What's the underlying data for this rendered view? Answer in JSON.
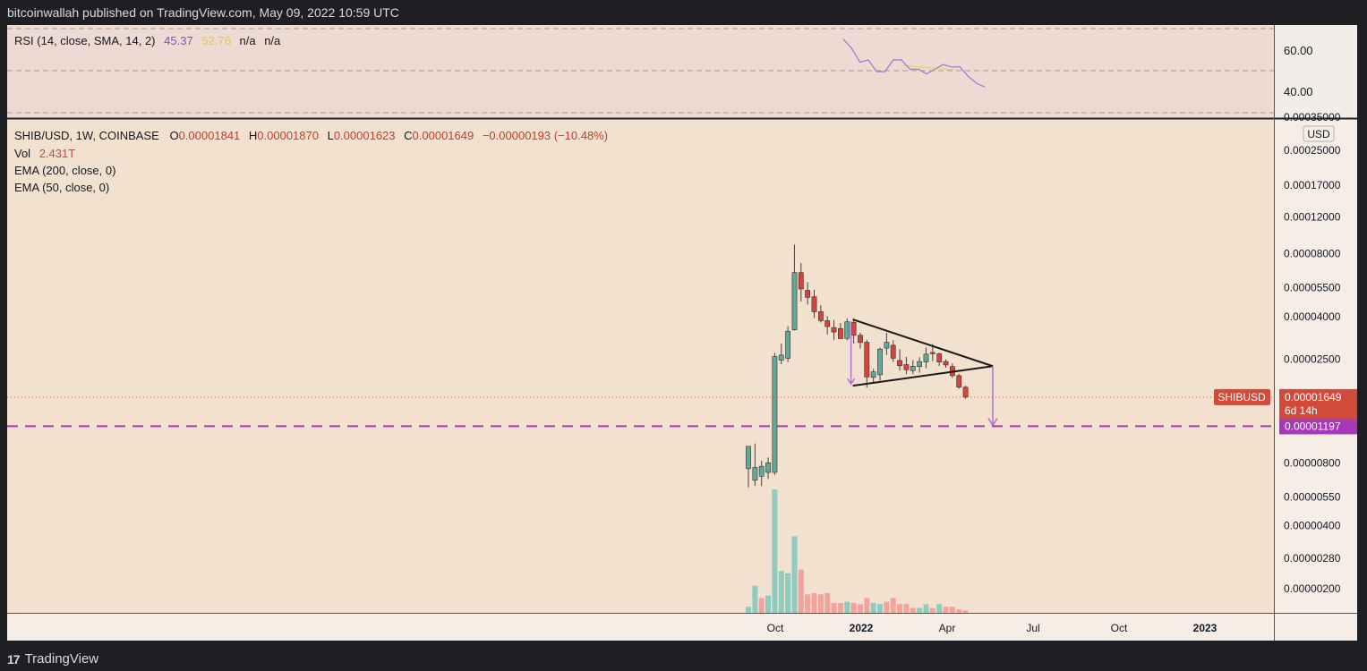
{
  "header": {
    "publisher_line": "bitcoinwallah published on TradingView.com, May 09, 2022 10:59 UTC"
  },
  "footer": {
    "brand": "TradingView",
    "logo_glyph": "17"
  },
  "colors": {
    "main_bg": "#f3e1cf",
    "rsi_bg": "#eddad3",
    "up": "#5fa89a",
    "down": "#d4453d",
    "vol_up": "#8fcbbf",
    "vol_down": "#f1a39c",
    "rsi_line": "#9a78d6",
    "rsi_sma": "#e8d25a",
    "target": "#a539b8",
    "last_price": "#d24a3a",
    "pattern": "#1a1a1a",
    "arrow": "#b073c9"
  },
  "rsi_panel": {
    "legend_name": "RSI (14, close, SMA, 14, 2)",
    "rsi_value": "45.37",
    "sma_value": "52.76",
    "na1": "n/a",
    "na2": "n/a",
    "ticks": [
      "60.00",
      "40.00"
    ]
  },
  "price_panel": {
    "symbol_line": "SHIB/USD, 1W, COINBASE",
    "ohlc": {
      "O": "0.00001841",
      "H": "0.00001870",
      "L": "0.00001623",
      "C": "0.00001649",
      "change": "−0.00000193 (−10.48%)"
    },
    "vol_label": "Vol",
    "vol_value": "2.431T",
    "ema200_label": "EMA (200, close, 0)",
    "ema50_label": "EMA (50, close, 0)",
    "currency": "USD",
    "last_price_label": "SHIBUSD",
    "last_price": "0.00001649",
    "countdown": "6d 14h",
    "target_price": "0.00001197",
    "clipped_tick": "0.00035000"
  },
  "chart_data": {
    "type": "candlestick",
    "log_scale": true,
    "x_axis_labels": [
      "Oct",
      "2022",
      "Apr",
      "Jul",
      "Oct",
      "2023"
    ],
    "price_ticks": [
      "0.00025000",
      "0.00017000",
      "0.00012000",
      "0.00008000",
      "0.00005500",
      "0.00004000",
      "0.00002500",
      "0.00000800",
      "0.00000550",
      "0.00000400",
      "0.00000280",
      "0.00000200"
    ],
    "candles": [
      {
        "o": 7.5e-06,
        "h": 9.2e-06,
        "l": 6.1e-06,
        "c": 9.6e-06
      },
      {
        "o": 6.6e-06,
        "h": 9.9e-06,
        "l": 6.2e-06,
        "c": 7.6e-06
      },
      {
        "o": 6.9e-06,
        "h": 8.2e-06,
        "l": 6.2e-06,
        "c": 7.7e-06
      },
      {
        "o": 7.2e-06,
        "h": 8.5e-06,
        "l": 6.7e-06,
        "c": 8e-06
      },
      {
        "o": 7.2e-06,
        "h": 2.68e-05,
        "l": 7e-06,
        "c": 2.58e-05
      },
      {
        "o": 2.48e-05,
        "h": 2.98e-05,
        "l": 2.37e-05,
        "c": 2.62e-05
      },
      {
        "o": 2.53e-05,
        "h": 3.6e-05,
        "l": 2.43e-05,
        "c": 3.41e-05
      },
      {
        "o": 3.46e-05,
        "h": 8.85e-05,
        "l": 3.43e-05,
        "c": 6.5e-05
      },
      {
        "o": 6.5e-05,
        "h": 7.22e-05,
        "l": 4.73e-05,
        "c": 5.43e-05
      },
      {
        "o": 5.35e-05,
        "h": 5.86e-05,
        "l": 4.57e-05,
        "c": 4.95e-05
      },
      {
        "o": 4.98e-05,
        "h": 5.39e-05,
        "l": 3.94e-05,
        "c": 4.22e-05
      },
      {
        "o": 4.23e-05,
        "h": 4.54e-05,
        "l": 3.75e-05,
        "c": 3.83e-05
      },
      {
        "o": 3.83e-05,
        "h": 4.02e-05,
        "l": 3.29e-05,
        "c": 3.59e-05
      },
      {
        "o": 3.55e-05,
        "h": 3.86e-05,
        "l": 3.09e-05,
        "c": 3.38e-05
      },
      {
        "o": 3.51e-05,
        "h": 3.73e-05,
        "l": 3.22e-05,
        "c": 3.14e-05
      },
      {
        "o": 3.15e-05,
        "h": 3.93e-05,
        "l": 3.08e-05,
        "c": 3.78e-05
      },
      {
        "o": 3.76e-05,
        "h": 3.93e-05,
        "l": 2.98e-05,
        "c": 3.26e-05
      },
      {
        "o": 3.26e-05,
        "h": 3.35e-05,
        "l": 2.82e-05,
        "c": 3.01e-05
      },
      {
        "o": 3.02e-05,
        "h": 3.1e-05,
        "l": 1.83e-05,
        "c": 2.06e-05
      },
      {
        "o": 2.05e-05,
        "h": 2.25e-05,
        "l": 1.93e-05,
        "c": 2.18e-05
      },
      {
        "o": 2.11e-05,
        "h": 2.85e-05,
        "l": 1.98e-05,
        "c": 2.8e-05
      },
      {
        "o": 2.83e-05,
        "h": 3.35e-05,
        "l": 2.62e-05,
        "c": 3.02e-05
      },
      {
        "o": 2.92e-05,
        "h": 3.09e-05,
        "l": 2.43e-05,
        "c": 2.53e-05
      },
      {
        "o": 2.47e-05,
        "h": 2.79e-05,
        "l": 2.21e-05,
        "c": 2.33e-05
      },
      {
        "o": 2.36e-05,
        "h": 2.57e-05,
        "l": 2.12e-05,
        "c": 2.23e-05
      },
      {
        "o": 2.21e-05,
        "h": 2.48e-05,
        "l": 2.13e-05,
        "c": 2.32e-05
      },
      {
        "o": 2.31e-05,
        "h": 2.56e-05,
        "l": 2.16e-05,
        "c": 2.44e-05
      },
      {
        "o": 2.43e-05,
        "h": 2.85e-05,
        "l": 2.27e-05,
        "c": 2.65e-05
      },
      {
        "o": 2.7e-05,
        "h": 2.96e-05,
        "l": 2.45e-05,
        "c": 2.66e-05
      },
      {
        "o": 2.66e-05,
        "h": 2.69e-05,
        "l": 2.32e-05,
        "c": 2.43e-05
      },
      {
        "o": 2.44e-05,
        "h": 2.5e-05,
        "l": 2.28e-05,
        "c": 2.35e-05
      },
      {
        "o": 2.31e-05,
        "h": 2.39e-05,
        "l": 2.04e-05,
        "c": 2.09e-05
      },
      {
        "o": 2.09e-05,
        "h": 2.13e-05,
        "l": 1.81e-05,
        "c": 1.84e-05
      },
      {
        "o": 1.84e-05,
        "h": 1.87e-05,
        "l": 1.62e-05,
        "c": 1.65e-05
      }
    ],
    "volume": [
      {
        "v": 0.05,
        "up": true
      },
      {
        "v": 0.22,
        "up": true
      },
      {
        "v": 0.12,
        "up": false
      },
      {
        "v": 0.14,
        "up": true
      },
      {
        "v": 1.0,
        "up": true
      },
      {
        "v": 0.34,
        "up": true
      },
      {
        "v": 0.32,
        "up": true
      },
      {
        "v": 0.62,
        "up": true
      },
      {
        "v": 0.35,
        "up": false
      },
      {
        "v": 0.15,
        "up": false
      },
      {
        "v": 0.16,
        "up": false
      },
      {
        "v": 0.15,
        "up": false
      },
      {
        "v": 0.16,
        "up": false
      },
      {
        "v": 0.08,
        "up": false
      },
      {
        "v": 0.08,
        "up": false
      },
      {
        "v": 0.09,
        "up": true
      },
      {
        "v": 0.08,
        "up": false
      },
      {
        "v": 0.07,
        "up": false
      },
      {
        "v": 0.12,
        "up": false
      },
      {
        "v": 0.08,
        "up": true
      },
      {
        "v": 0.07,
        "up": true
      },
      {
        "v": 0.09,
        "up": false
      },
      {
        "v": 0.12,
        "up": false
      },
      {
        "v": 0.07,
        "up": false
      },
      {
        "v": 0.07,
        "up": false
      },
      {
        "v": 0.04,
        "up": false
      },
      {
        "v": 0.04,
        "up": true
      },
      {
        "v": 0.07,
        "up": true
      },
      {
        "v": 0.04,
        "up": false
      },
      {
        "v": 0.07,
        "up": true
      },
      {
        "v": 0.05,
        "up": false
      },
      {
        "v": 0.05,
        "up": false
      },
      {
        "v": 0.03,
        "up": false
      },
      {
        "v": 0.02,
        "up": false
      }
    ],
    "rsi": [
      66,
      62,
      56,
      57,
      52,
      52,
      57,
      57,
      53,
      53,
      51,
      53,
      55,
      54,
      54,
      50,
      47,
      45.37
    ],
    "rsi_sma": [
      54.6,
      54.2,
      53.7,
      53.2,
      52.76
    ],
    "rsi_range": [
      32,
      72
    ],
    "triangle": {
      "upper_start": 3.88e-05,
      "lower_start": 1.87e-05,
      "apex": 2.32e-05
    },
    "target": 1.197e-05
  }
}
